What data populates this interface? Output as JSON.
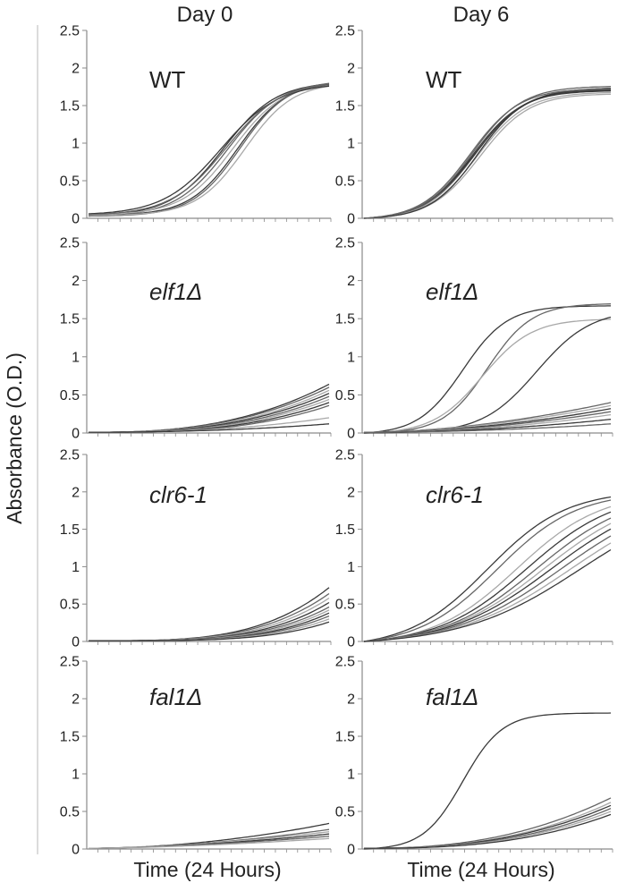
{
  "column_titles": [
    "Day 0",
    "Day 6"
  ],
  "ylabel": "Absorbance (O.D.)",
  "xlabel": "Time (24 Hours)",
  "colors": {
    "axis": "#8a8a8a",
    "dark_curve": "#3a3a3a",
    "mid_curve": "#666666",
    "light_curve": "#a8a8a8"
  },
  "chart_data": [
    {
      "type": "line",
      "column": "Day 0",
      "label": "WT",
      "italic": false,
      "ylim": [
        0,
        2.5
      ],
      "yticks": [
        "0",
        "0.5",
        "1",
        "1.5",
        "2",
        "2.5"
      ],
      "series": [
        {
          "form": "logistic",
          "base": 0.04,
          "top": 1.82,
          "mid": 0.56,
          "k": 0.11
        },
        {
          "form": "logistic",
          "base": 0.03,
          "top": 1.83,
          "mid": 0.58,
          "k": 0.11
        },
        {
          "form": "logistic",
          "base": 0.05,
          "top": 1.81,
          "mid": 0.6,
          "k": 0.105
        },
        {
          "form": "logistic",
          "base": 0.04,
          "top": 1.82,
          "mid": 0.62,
          "k": 0.1
        },
        {
          "form": "logistic",
          "base": 0.03,
          "top": 1.84,
          "mid": 0.63,
          "k": 0.1
        },
        {
          "form": "logistic",
          "base": 0.04,
          "top": 1.81,
          "mid": 0.65,
          "k": 0.1
        },
        {
          "form": "logistic",
          "base": 0.06,
          "top": 1.8,
          "mid": 0.55,
          "k": 0.12
        },
        {
          "form": "logistic",
          "base": 0.05,
          "top": 1.82,
          "mid": 0.57,
          "k": 0.115
        }
      ]
    },
    {
      "type": "line",
      "column": "Day 6",
      "label": "WT",
      "italic": false,
      "ylim": [
        0,
        2.5
      ],
      "yticks": [
        "0",
        "0.5",
        "1",
        "1.5",
        "2",
        "2.5"
      ],
      "series": [
        {
          "form": "logistic",
          "base": 0.0,
          "top": 1.7,
          "mid": 0.44,
          "k": 0.1
        },
        {
          "form": "logistic",
          "base": 0.0,
          "top": 1.72,
          "mid": 0.45,
          "k": 0.1
        },
        {
          "form": "logistic",
          "base": 0.0,
          "top": 1.68,
          "mid": 0.46,
          "k": 0.1
        },
        {
          "form": "logistic",
          "base": 0.0,
          "top": 1.74,
          "mid": 0.45,
          "k": 0.105
        },
        {
          "form": "logistic",
          "base": 0.0,
          "top": 1.76,
          "mid": 0.44,
          "k": 0.1
        },
        {
          "form": "logistic",
          "base": 0.0,
          "top": 1.66,
          "mid": 0.47,
          "k": 0.1
        },
        {
          "form": "logistic",
          "base": 0.0,
          "top": 1.71,
          "mid": 0.46,
          "k": 0.095
        },
        {
          "form": "logistic",
          "base": 0.0,
          "top": 1.73,
          "mid": 0.43,
          "k": 0.1
        }
      ]
    },
    {
      "type": "line",
      "column": "Day 0",
      "label": "elf1Δ",
      "italic": true,
      "ylim": [
        0,
        2.5
      ],
      "yticks": [
        "0",
        "0.5",
        "1",
        "1.5",
        "2",
        "2.5"
      ],
      "series": [
        {
          "form": "power",
          "end": 0.64,
          "p": 2.6
        },
        {
          "form": "power",
          "end": 0.6,
          "p": 2.6
        },
        {
          "form": "power",
          "end": 0.56,
          "p": 2.7
        },
        {
          "form": "power",
          "end": 0.52,
          "p": 2.7
        },
        {
          "form": "power",
          "end": 0.48,
          "p": 2.8
        },
        {
          "form": "power",
          "end": 0.44,
          "p": 2.8
        },
        {
          "form": "power",
          "end": 0.4,
          "p": 2.9
        },
        {
          "form": "power",
          "end": 0.36,
          "p": 3.0
        },
        {
          "form": "power",
          "end": 0.2,
          "p": 2.4
        },
        {
          "form": "power",
          "end": 0.12,
          "p": 2.2
        }
      ]
    },
    {
      "type": "line",
      "column": "Day 6",
      "label": "elf1Δ",
      "italic": true,
      "ylim": [
        0,
        2.5
      ],
      "yticks": [
        "0",
        "0.5",
        "1",
        "1.5",
        "2",
        "2.5"
      ],
      "series": [
        {
          "form": "logistic",
          "base": 0.0,
          "top": 1.67,
          "mid": 0.4,
          "k": 0.09
        },
        {
          "form": "logistic",
          "base": 0.0,
          "top": 1.7,
          "mid": 0.5,
          "k": 0.09
        },
        {
          "form": "logistic",
          "base": 0.0,
          "top": 1.5,
          "mid": 0.48,
          "k": 0.1
        },
        {
          "form": "logistic",
          "base": 0.0,
          "top": 1.62,
          "mid": 0.7,
          "k": 0.11
        },
        {
          "form": "power",
          "end": 0.4,
          "p": 1.8
        },
        {
          "form": "power",
          "end": 0.36,
          "p": 1.8
        },
        {
          "form": "power",
          "end": 0.32,
          "p": 1.9
        },
        {
          "form": "power",
          "end": 0.28,
          "p": 1.9
        },
        {
          "form": "power",
          "end": 0.24,
          "p": 2.0
        },
        {
          "form": "power",
          "end": 0.18,
          "p": 2.0
        },
        {
          "form": "power",
          "end": 0.12,
          "p": 2.0
        }
      ]
    },
    {
      "type": "line",
      "column": "Day 0",
      "label": "clr6-1",
      "italic": true,
      "ylim": [
        0,
        2.5
      ],
      "yticks": [
        "0",
        "0.5",
        "1",
        "1.5",
        "2",
        "2.5"
      ],
      "series": [
        {
          "form": "power",
          "end": 0.72,
          "p": 3.6
        },
        {
          "form": "power",
          "end": 0.64,
          "p": 3.6
        },
        {
          "form": "power",
          "end": 0.58,
          "p": 3.7
        },
        {
          "form": "power",
          "end": 0.52,
          "p": 3.8
        },
        {
          "form": "power",
          "end": 0.46,
          "p": 3.8
        },
        {
          "form": "power",
          "end": 0.42,
          "p": 3.9
        },
        {
          "form": "power",
          "end": 0.38,
          "p": 4.0
        },
        {
          "form": "power",
          "end": 0.34,
          "p": 4.0
        },
        {
          "form": "power",
          "end": 0.3,
          "p": 4.1
        },
        {
          "form": "power",
          "end": 0.26,
          "p": 4.2
        }
      ]
    },
    {
      "type": "line",
      "column": "Day 6",
      "label": "clr6-1",
      "italic": true,
      "ylim": [
        0,
        2.5
      ],
      "yticks": [
        "0",
        "0.5",
        "1",
        "1.5",
        "2",
        "2.5"
      ],
      "series": [
        {
          "form": "logistic",
          "base": 0.0,
          "top": 2.02,
          "mid": 0.5,
          "k": 0.16
        },
        {
          "form": "logistic",
          "base": 0.0,
          "top": 2.0,
          "mid": 0.54,
          "k": 0.16
        },
        {
          "form": "logistic",
          "base": 0.0,
          "top": 2.0,
          "mid": 0.62,
          "k": 0.17
        },
        {
          "form": "logistic",
          "base": 0.0,
          "top": 2.0,
          "mid": 0.66,
          "k": 0.18
        },
        {
          "form": "logistic",
          "base": 0.0,
          "top": 2.0,
          "mid": 0.7,
          "k": 0.19
        },
        {
          "form": "logistic",
          "base": 0.0,
          "top": 2.0,
          "mid": 0.73,
          "k": 0.2
        },
        {
          "form": "logistic",
          "base": 0.0,
          "top": 2.0,
          "mid": 0.76,
          "k": 0.21
        },
        {
          "form": "logistic",
          "base": 0.0,
          "top": 2.0,
          "mid": 0.8,
          "k": 0.22
        },
        {
          "form": "logistic",
          "base": 0.0,
          "top": 2.0,
          "mid": 0.84,
          "k": 0.23
        },
        {
          "form": "logistic",
          "base": 0.0,
          "top": 2.0,
          "mid": 0.88,
          "k": 0.24
        }
      ]
    },
    {
      "type": "line",
      "column": "Day 0",
      "label": "fal1Δ",
      "italic": true,
      "ylim": [
        0,
        2.5
      ],
      "yticks": [
        "0",
        "0.5",
        "1",
        "1.5",
        "2",
        "2.5"
      ],
      "series": [
        {
          "form": "power",
          "end": 0.34,
          "p": 1.9
        },
        {
          "form": "power",
          "end": 0.26,
          "p": 1.8
        },
        {
          "form": "power",
          "end": 0.23,
          "p": 1.7
        },
        {
          "form": "power",
          "end": 0.2,
          "p": 1.7
        },
        {
          "form": "power",
          "end": 0.17,
          "p": 1.6
        },
        {
          "form": "power",
          "end": 0.14,
          "p": 1.6
        }
      ]
    },
    {
      "type": "line",
      "column": "Day 6",
      "label": "fal1Δ",
      "italic": true,
      "ylim": [
        0,
        2.5
      ],
      "yticks": [
        "0",
        "0.5",
        "1",
        "1.5",
        "2",
        "2.5"
      ],
      "series": [
        {
          "form": "logistic",
          "base": 0.0,
          "top": 1.81,
          "mid": 0.4,
          "k": 0.08
        },
        {
          "form": "power",
          "end": 0.68,
          "p": 2.4
        },
        {
          "form": "power",
          "end": 0.62,
          "p": 2.5
        },
        {
          "form": "power",
          "end": 0.58,
          "p": 2.5
        },
        {
          "form": "power",
          "end": 0.54,
          "p": 2.6
        },
        {
          "form": "power",
          "end": 0.5,
          "p": 2.6
        },
        {
          "form": "power",
          "end": 0.46,
          "p": 2.7
        }
      ]
    }
  ]
}
